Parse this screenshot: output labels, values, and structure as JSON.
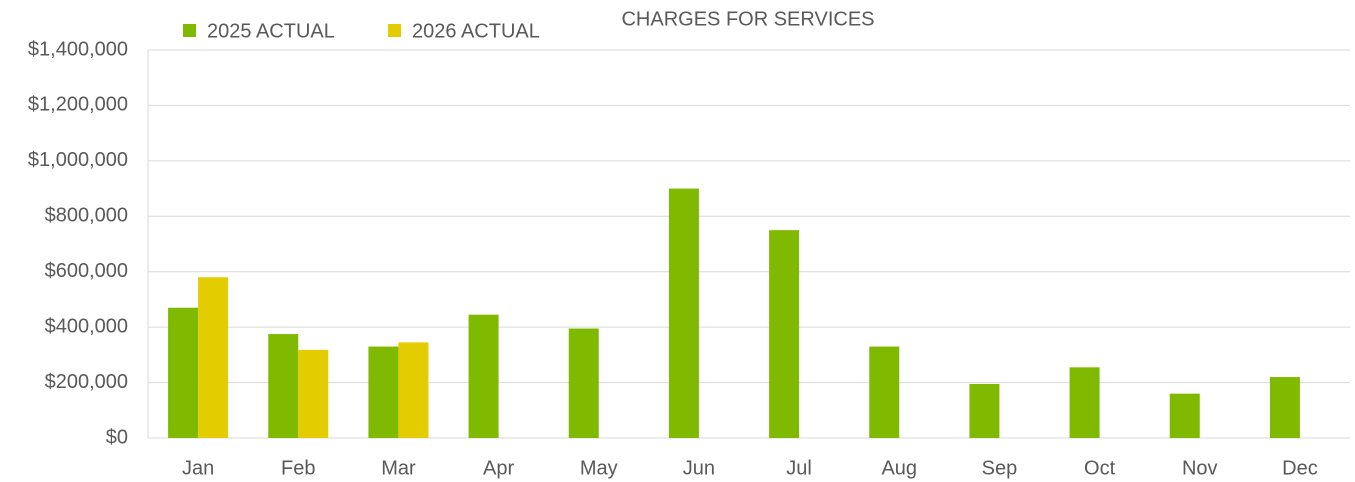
{
  "chart_data": {
    "type": "bar",
    "title": "CHARGES FOR SERVICES",
    "categories": [
      "Jan",
      "Feb",
      "Mar",
      "Apr",
      "May",
      "Jun",
      "Jul",
      "Aug",
      "Sep",
      "Oct",
      "Nov",
      "Dec"
    ],
    "series": [
      {
        "name": "2025 ACTUAL",
        "color": "#7fba00",
        "values": [
          470000,
          375000,
          330000,
          445000,
          395000,
          900000,
          750000,
          330000,
          195000,
          255000,
          160000,
          220000
        ]
      },
      {
        "name": "2026 ACTUAL",
        "color": "#e3cc00",
        "values": [
          580000,
          318000,
          345000,
          null,
          null,
          null,
          null,
          null,
          null,
          null,
          null,
          null
        ]
      }
    ],
    "ylim": [
      0,
      1400000
    ],
    "yticks": [
      {
        "value": 0,
        "label": "$0"
      },
      {
        "value": 200000,
        "label": "$200,000"
      },
      {
        "value": 400000,
        "label": "$400,000"
      },
      {
        "value": 600000,
        "label": "$600,000"
      },
      {
        "value": 800000,
        "label": "$800,000"
      },
      {
        "value": 1000000,
        "label": "$1,000,000"
      },
      {
        "value": 1200000,
        "label": "$1,200,000"
      },
      {
        "value": 1400000,
        "label": "$1,400,000"
      }
    ],
    "grid": true,
    "legend": "top-left"
  }
}
